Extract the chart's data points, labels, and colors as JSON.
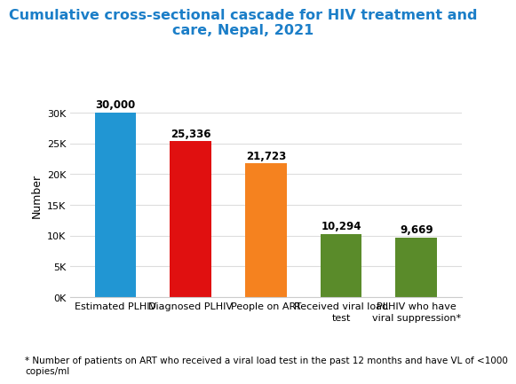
{
  "title": "Cumulative cross-sectional cascade for HIV treatment and\ncare, Nepal, 2021",
  "title_color": "#1B7EC8",
  "categories": [
    "Estimated PLHIV",
    "Diagnosed PLHIV",
    "People on ART",
    "Received viral load\ntest",
    "PLHIV who have\nviral suppression*"
  ],
  "values": [
    30000,
    25336,
    21723,
    10294,
    9669
  ],
  "bar_colors": [
    "#2196D3",
    "#E01010",
    "#F5821F",
    "#5A8B2A",
    "#5A8B2A"
  ],
  "labels": [
    "30,000",
    "25,336",
    "21,723",
    "10,294",
    "9,669"
  ],
  "ylabel": "Number",
  "ylim": [
    0,
    33000
  ],
  "yticks": [
    0,
    5000,
    10000,
    15000,
    20000,
    25000,
    30000
  ],
  "ytick_labels": [
    "0K",
    "5K",
    "10K",
    "15K",
    "20K",
    "25K",
    "30K"
  ],
  "footnote": "* Number of patients on ART who received a viral load test in the past 12 months and have VL of <1000\ncopies/ml",
  "background_color": "#FFFFFF",
  "grid_color": "#DDDDDD",
  "bar_width": 0.55,
  "label_fontsize": 8.5,
  "title_fontsize": 11.5,
  "ylabel_fontsize": 9,
  "tick_fontsize": 8,
  "footnote_fontsize": 7.5
}
